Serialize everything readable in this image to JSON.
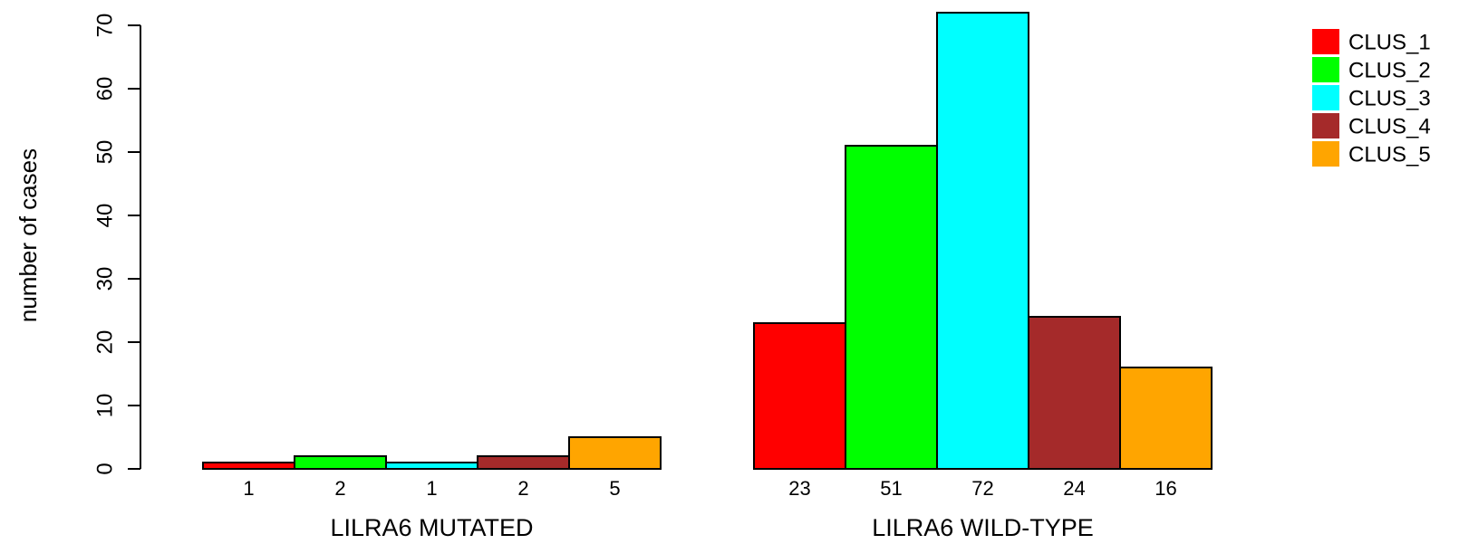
{
  "chart_data": {
    "type": "bar",
    "ylabel": "number of cases",
    "ylim": [
      0,
      70
    ],
    "yticks": [
      0,
      10,
      20,
      30,
      40,
      50,
      60,
      70
    ],
    "groups": [
      {
        "label": "LILRA6 MUTATED",
        "values": [
          1,
          2,
          1,
          2,
          5
        ]
      },
      {
        "label": "LILRA6 WILD-TYPE",
        "values": [
          23,
          51,
          72,
          24,
          16
        ]
      }
    ],
    "series": [
      {
        "name": "CLUS_1",
        "color": "#ff0000"
      },
      {
        "name": "CLUS_2",
        "color": "#00ff00"
      },
      {
        "name": "CLUS_3",
        "color": "#00ffff"
      },
      {
        "name": "CLUS_4",
        "color": "#a52a2a"
      },
      {
        "name": "CLUS_5",
        "color": "#ffa500"
      }
    ],
    "legend_position": "top-right",
    "grid": false
  }
}
